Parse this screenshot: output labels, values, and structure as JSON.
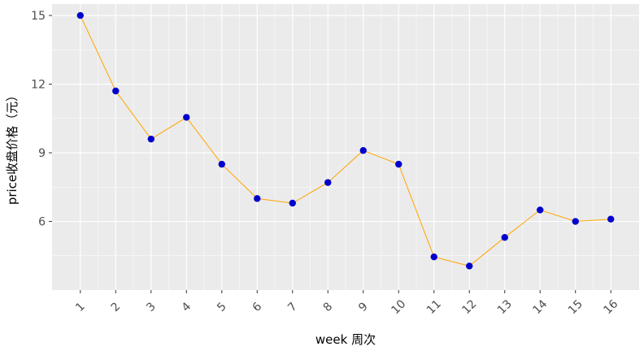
{
  "chart_data": {
    "type": "line",
    "title": "",
    "xlabel": "week 周次",
    "ylabel": "price收盘价格（元）",
    "x": [
      1,
      2,
      3,
      4,
      5,
      6,
      7,
      8,
      9,
      10,
      11,
      12,
      13,
      14,
      15,
      16
    ],
    "series": [
      {
        "values": [
          15.0,
          11.7,
          9.6,
          10.55,
          8.5,
          7.0,
          6.8,
          7.7,
          9.1,
          8.5,
          4.45,
          4.05,
          5.3,
          6.5,
          6.0,
          6.1
        ],
        "line_color": "#FFA500",
        "point_color": "#0000CD"
      }
    ],
    "yticks": [
      6,
      9,
      12,
      15
    ],
    "xlim": [
      0.2,
      16.8
    ],
    "ylim": [
      3.0,
      15.5
    ],
    "grid": true,
    "panel_background": "#EBEBEB",
    "grid_color": "#FFFFFF"
  }
}
